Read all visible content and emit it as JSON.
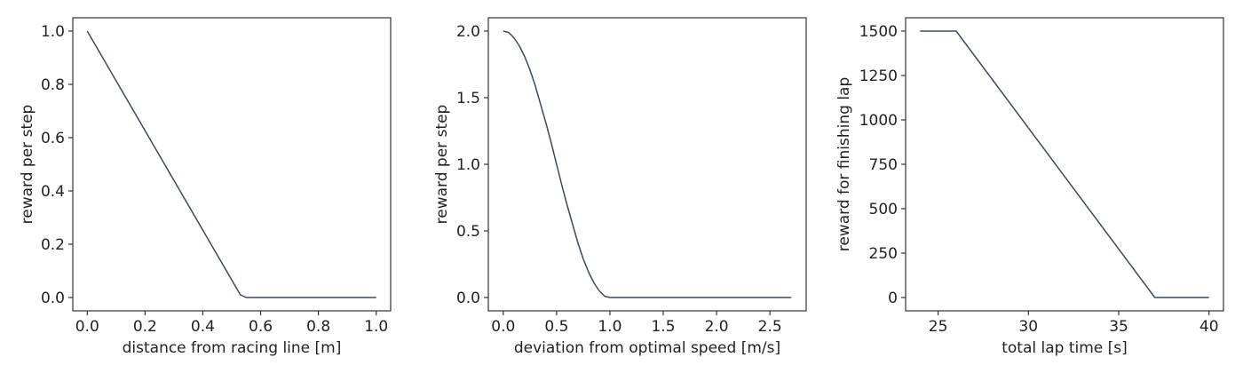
{
  "chart_data": [
    {
      "type": "line",
      "xlabel": "distance from racing line [m]",
      "ylabel": "reward per step",
      "xlim": [
        -0.05,
        1.05
      ],
      "ylim": [
        -0.05,
        1.05
      ],
      "xticks": [
        0.0,
        0.2,
        0.4,
        0.6,
        0.8,
        1.0
      ],
      "xtick_labels": [
        "0.0",
        "0.2",
        "0.4",
        "0.6",
        "0.8",
        "1.0"
      ],
      "yticks": [
        0.0,
        0.2,
        0.4,
        0.6,
        0.8,
        1.0
      ],
      "ytick_labels": [
        "0.0",
        "0.2",
        "0.4",
        "0.6",
        "0.8",
        "1.0"
      ],
      "grid": false,
      "color": "#3b4a5c",
      "series": [
        {
          "x": [
            0.0,
            0.53,
            0.55,
            1.0
          ],
          "y": [
            1.0,
            0.01,
            0.0,
            0.0
          ]
        }
      ]
    },
    {
      "type": "line",
      "xlabel": "deviation from optimal speed [m/s]",
      "ylabel": "reward per step",
      "xlim": [
        -0.14,
        2.84
      ],
      "ylim": [
        -0.1,
        2.1
      ],
      "xticks": [
        0.0,
        0.5,
        1.0,
        1.5,
        2.0,
        2.5
      ],
      "xtick_labels": [
        "0.0",
        "0.5",
        "1.0",
        "1.5",
        "2.0",
        "2.5"
      ],
      "yticks": [
        0.0,
        0.5,
        1.0,
        1.5,
        2.0
      ],
      "ytick_labels": [
        "0.0",
        "0.5",
        "1.0",
        "1.5",
        "2.0"
      ],
      "grid": false,
      "color": "#3b4a5c",
      "series": [
        {
          "x": [
            0.0,
            0.05,
            0.1,
            0.15,
            0.2,
            0.25,
            0.3,
            0.35,
            0.4,
            0.45,
            0.5,
            0.55,
            0.6,
            0.65,
            0.7,
            0.75,
            0.8,
            0.85,
            0.9,
            0.95,
            1.0,
            1.5,
            2.0,
            2.7
          ],
          "y": [
            2.0,
            1.99,
            1.95,
            1.89,
            1.81,
            1.71,
            1.59,
            1.45,
            1.31,
            1.16,
            1.0,
            0.84,
            0.69,
            0.55,
            0.41,
            0.29,
            0.19,
            0.11,
            0.05,
            0.01,
            0.0,
            0.0,
            0.0,
            0.0
          ]
        }
      ]
    },
    {
      "type": "line",
      "xlabel": "total lap time [s]",
      "ylabel": "reward for finishing lap",
      "xlim": [
        23.2,
        40.8
      ],
      "ylim": [
        -75,
        1575
      ],
      "xticks": [
        25,
        30,
        35,
        40
      ],
      "xtick_labels": [
        "25",
        "30",
        "35",
        "40"
      ],
      "yticks": [
        0,
        250,
        500,
        750,
        1000,
        1250,
        1500
      ],
      "ytick_labels": [
        "0",
        "250",
        "500",
        "750",
        "1000",
        "1250",
        "1500"
      ],
      "grid": false,
      "color": "#3b4a5c",
      "series": [
        {
          "x": [
            24.0,
            26.0,
            37.0,
            40.0
          ],
          "y": [
            1500,
            1500,
            0,
            0
          ]
        }
      ]
    }
  ]
}
